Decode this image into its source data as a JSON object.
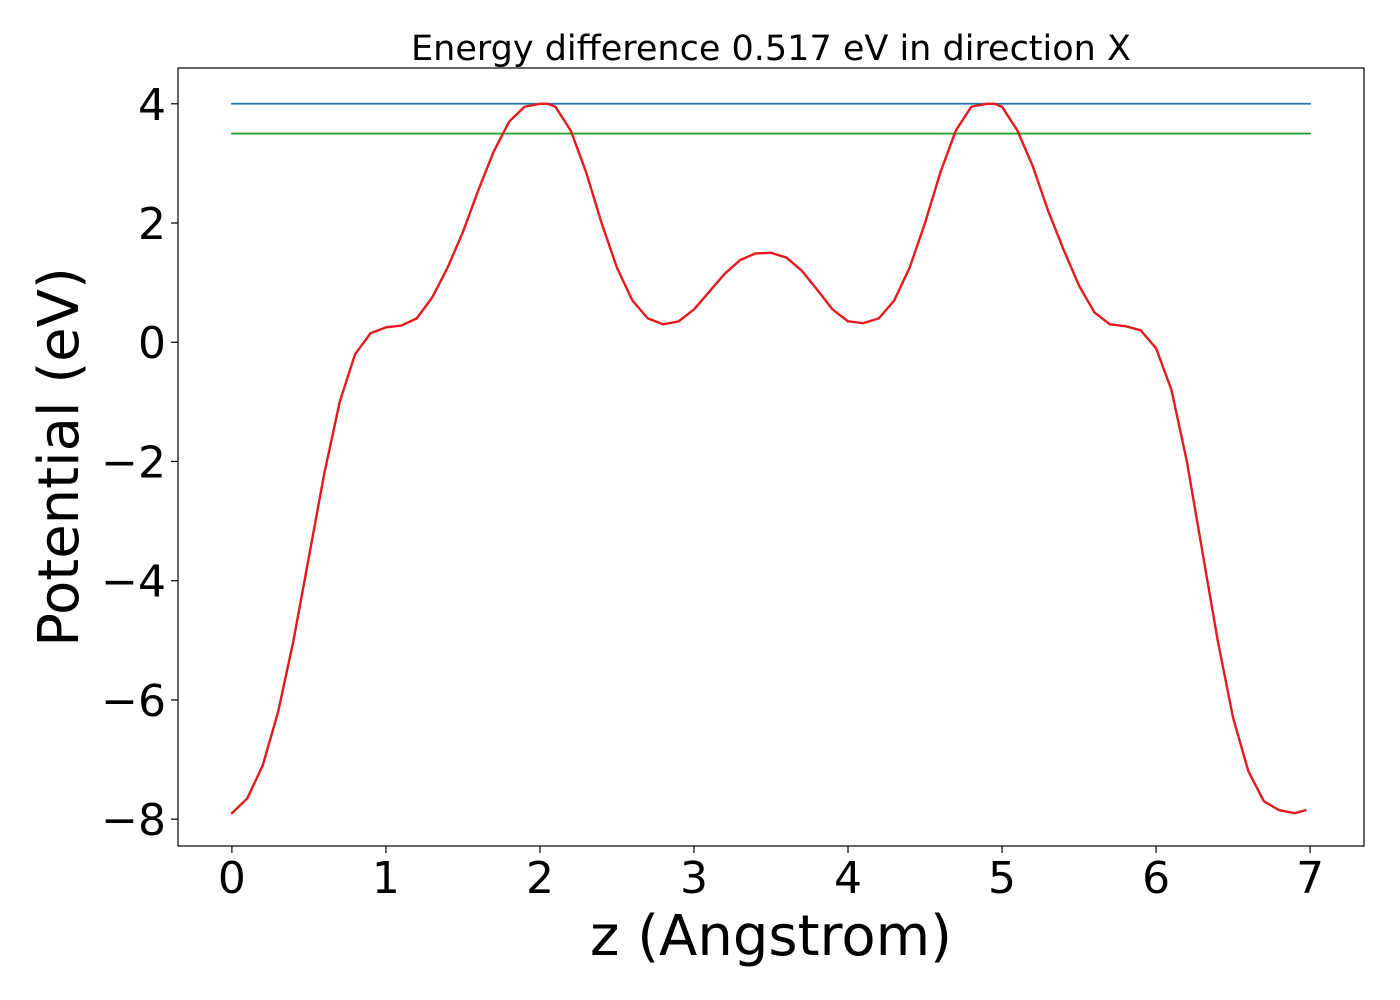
{
  "chart_data": {
    "type": "line",
    "title": "Energy difference 0.517 eV in direction X",
    "xlabel": "z (Angstrom)",
    "ylabel": "Potential (eV)",
    "xlim": [
      -0.35,
      7.35
    ],
    "ylim": [
      -8.45,
      4.6
    ],
    "xticks": [
      0,
      1,
      2,
      3,
      4,
      5,
      6,
      7
    ],
    "xtick_labels": [
      "0",
      "1",
      "2",
      "3",
      "4",
      "5",
      "6",
      "7"
    ],
    "yticks": [
      4,
      2,
      0,
      -2,
      -4,
      -6,
      -8
    ],
    "ytick_labels": [
      "4",
      "2",
      "0",
      "−2",
      "−4",
      "−6",
      "−8"
    ],
    "grid": false,
    "legend": "none",
    "series": [
      {
        "color": "#1f77b4",
        "x": [
          0,
          7
        ],
        "y": [
          4.0,
          4.0
        ]
      },
      {
        "color": "#2ca02c",
        "x": [
          0,
          7
        ],
        "y": [
          3.5,
          3.5
        ]
      },
      {
        "color": "#e41a1c",
        "x": [
          0,
          0.1,
          0.2,
          0.3,
          0.4,
          0.5,
          0.6,
          0.7,
          0.8,
          0.9,
          1.0,
          1.1,
          1.2,
          1.3,
          1.4,
          1.5,
          1.6,
          1.7,
          1.8,
          1.9,
          2.0,
          2.05,
          2.1,
          2.2,
          2.3,
          2.4,
          2.5,
          2.6,
          2.7,
          2.8,
          2.9,
          3.0,
          3.1,
          3.2,
          3.3,
          3.4,
          3.5,
          3.6,
          3.7,
          3.8,
          3.9,
          4.0,
          4.1,
          4.2,
          4.3,
          4.4,
          4.5,
          4.6,
          4.7,
          4.8,
          4.9,
          4.95,
          5.0,
          5.1,
          5.2,
          5.3,
          5.4,
          5.5,
          5.6,
          5.7,
          5.8,
          5.9,
          6.0,
          6.1,
          6.2,
          6.3,
          6.4,
          6.5,
          6.6,
          6.7,
          6.8,
          6.9,
          6.97
        ],
        "y": [
          -7.9,
          -7.65,
          -7.1,
          -6.2,
          -5.0,
          -3.6,
          -2.2,
          -1.0,
          -0.2,
          0.15,
          0.25,
          0.28,
          0.4,
          0.75,
          1.25,
          1.85,
          2.55,
          3.2,
          3.7,
          3.95,
          4.0,
          4.0,
          3.95,
          3.55,
          2.85,
          2.0,
          1.25,
          0.7,
          0.4,
          0.3,
          0.35,
          0.55,
          0.85,
          1.15,
          1.38,
          1.49,
          1.5,
          1.42,
          1.2,
          0.88,
          0.55,
          0.35,
          0.32,
          0.4,
          0.7,
          1.25,
          2.0,
          2.85,
          3.55,
          3.95,
          4.0,
          4.0,
          3.95,
          3.55,
          2.95,
          2.2,
          1.55,
          0.95,
          0.5,
          0.3,
          0.27,
          0.2,
          -0.1,
          -0.8,
          -2.0,
          -3.5,
          -5.0,
          -6.3,
          -7.2,
          -7.7,
          -7.85,
          -7.9,
          -7.85
        ]
      }
    ]
  }
}
